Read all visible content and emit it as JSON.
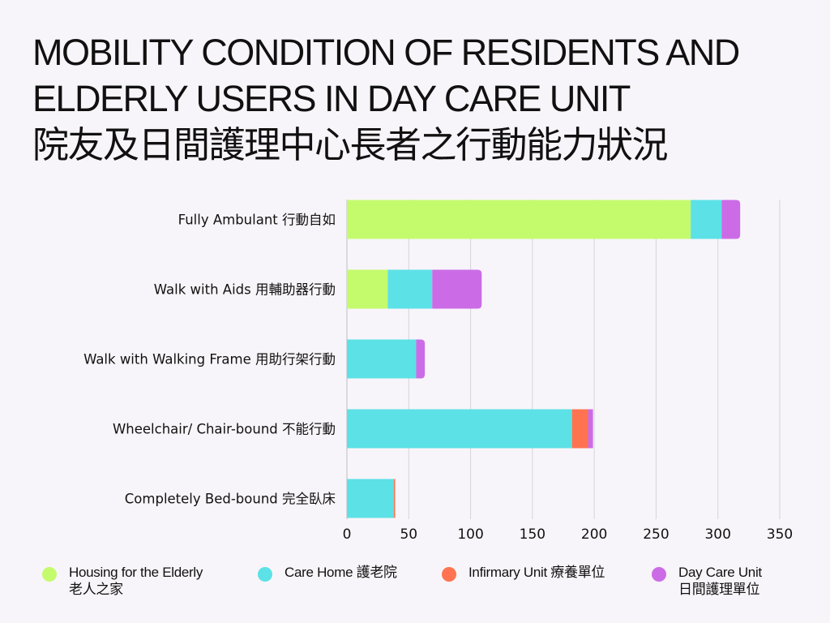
{
  "title": {
    "line1": "MOBILITY CONDITION OF RESIDENTS AND",
    "line2": "ELDERLY USERS IN DAY CARE UNIT",
    "line3": "院友及日間護理中心長者之行動能力狀況"
  },
  "legend": [
    {
      "line1": "Housing for the Elderly",
      "line2": "老人之家",
      "color": "#c4fb6d"
    },
    {
      "line1": "Care Home 護老院",
      "line2": "",
      "color": "#5ce1e6"
    },
    {
      "line1": "Infirmary Unit 療養單位",
      "line2": "",
      "color": "#ff7350"
    },
    {
      "line1": "Day Care Unit",
      "line2": "日間護理單位",
      "color": "#cb6ce6"
    }
  ],
  "chart_data": {
    "type": "bar",
    "orientation": "horizontal",
    "stacked": true,
    "categories": [
      "Fully Ambulant 行動自如",
      "Walk with Aids 用輔助器行動",
      "Walk with Walking Frame 用助行架行動",
      "Wheelchair/ Chair-bound 不能行動",
      "Completely Bed-bound 完全臥床"
    ],
    "series": [
      {
        "name": "Housing for the Elderly 老人之家",
        "color": "#c4fb6d",
        "values": [
          278,
          33,
          0,
          0,
          0
        ]
      },
      {
        "name": "Care Home 護老院",
        "color": "#5ce1e6",
        "values": [
          25,
          36,
          56,
          182,
          38
        ]
      },
      {
        "name": "Infirmary Unit 療養單位",
        "color": "#ff7350",
        "values": [
          0,
          0,
          0,
          13,
          1
        ]
      },
      {
        "name": "Day Care Unit 日間護理單位",
        "color": "#cb6ce6",
        "values": [
          15,
          40,
          7,
          4,
          0
        ]
      }
    ],
    "xlim": [
      0,
      350
    ],
    "xticks": [
      0,
      50,
      100,
      150,
      200,
      250,
      300,
      350
    ],
    "grid": true,
    "legend_position": "bottom"
  }
}
